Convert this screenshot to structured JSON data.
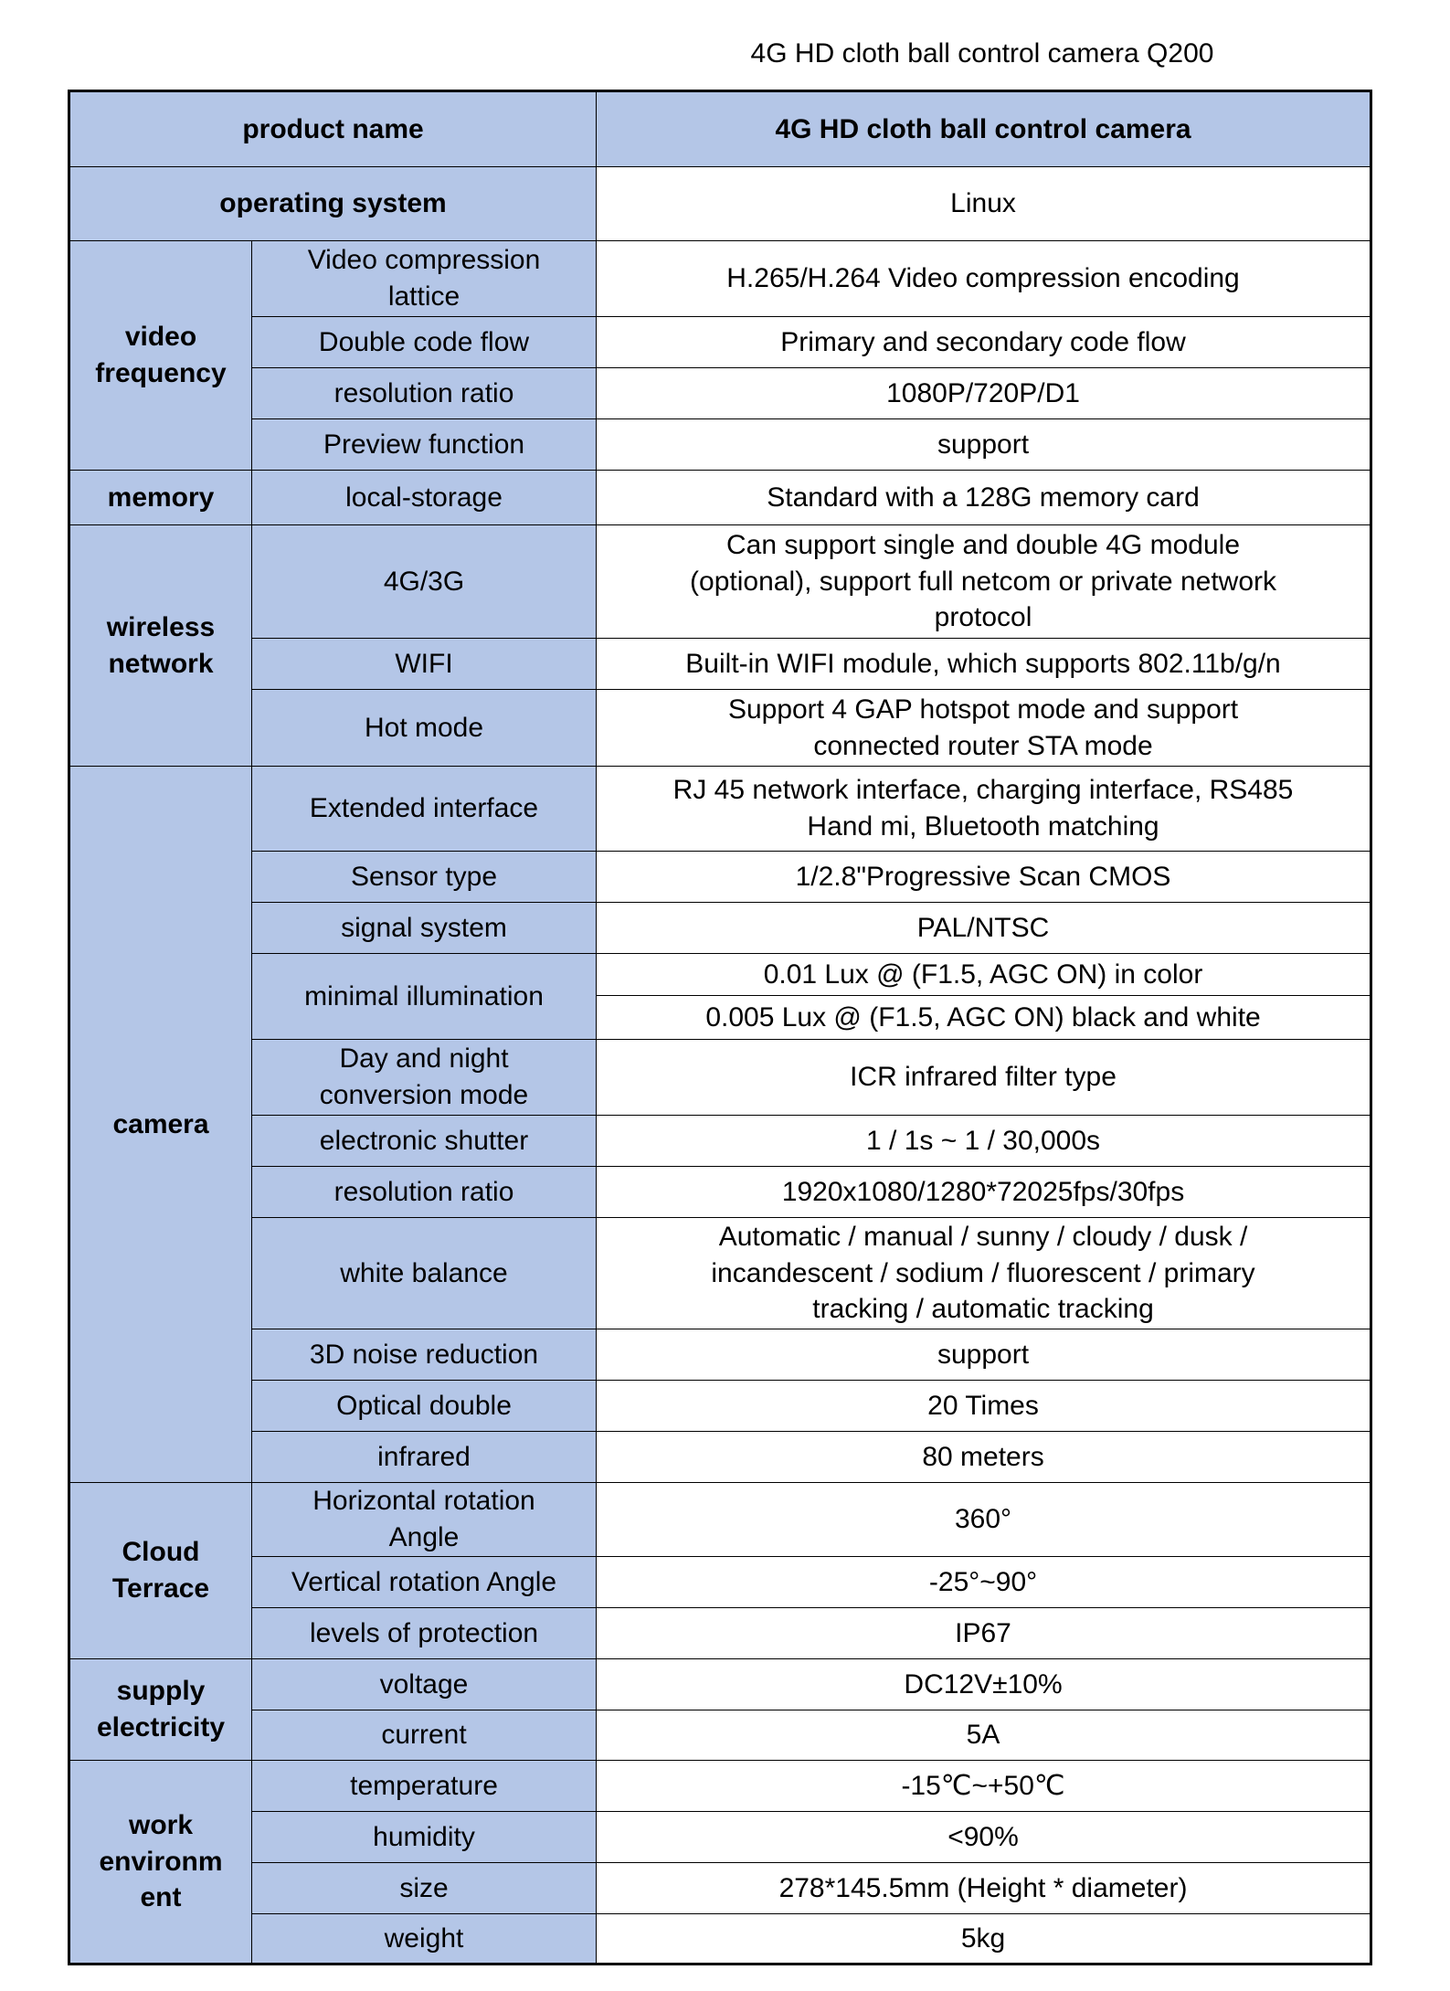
{
  "title": "4G HD cloth ball control camera Q200",
  "header": {
    "label": "product name",
    "value": "4G HD cloth ball control camera"
  },
  "os": {
    "label": "operating system",
    "value": "Linux"
  },
  "groups": {
    "video": {
      "label": "video\nfrequency",
      "rows": [
        {
          "label": "Video compression\nlattice",
          "value": "H.265/H.264 Video compression encoding"
        },
        {
          "label": "Double code flow",
          "value": "Primary and secondary code flow"
        },
        {
          "label": "resolution ratio",
          "value": "1080P/720P/D1"
        },
        {
          "label": "Preview function",
          "value": "support"
        }
      ]
    },
    "memory": {
      "label": "memory",
      "rows": [
        {
          "label": "local-storage",
          "value": "Standard with a 128G memory card"
        }
      ]
    },
    "wireless": {
      "label": "wireless\nnetwork",
      "rows": [
        {
          "label": "4G/3G",
          "value": "Can support single and double 4G module\n(optional), support full netcom or private network\nprotocol"
        },
        {
          "label": "WIFI",
          "value": "Built-in WIFI module, which supports 802.11b/g/n"
        },
        {
          "label": "Hot mode",
          "value": "Support 4 GAP hotspot mode and support\nconnected router STA mode"
        }
      ]
    },
    "camera": {
      "label": "camera",
      "rows": [
        {
          "label": "Extended interface",
          "value": "RJ 45 network interface, charging interface, RS485\nHand mi, Bluetooth matching"
        },
        {
          "label": "Sensor type",
          "value": "1/2.8\"Progressive Scan CMOS"
        },
        {
          "label": "signal system",
          "value": "PAL/NTSC"
        },
        {
          "label": "minimal illumination",
          "values": [
            "0.01 Lux @ (F1.5, AGC ON) in color",
            "0.005 Lux @ (F1.5, AGC ON) black and white"
          ]
        },
        {
          "label": "Day and night\nconversion mode",
          "value": "ICR infrared filter type"
        },
        {
          "label": "electronic shutter",
          "value": "1 / 1s ~ 1 / 30,000s"
        },
        {
          "label": "resolution ratio",
          "value": "1920x1080/1280*72025fps/30fps"
        },
        {
          "label": "white balance",
          "value": "Automatic / manual / sunny / cloudy / dusk /\nincandescent / sodium / fluorescent / primary\ntracking / automatic tracking"
        },
        {
          "label": "3D noise reduction",
          "value": "support"
        },
        {
          "label": "Optical double",
          "value": "20 Times"
        },
        {
          "label": "infrared",
          "value": "80 meters"
        }
      ]
    },
    "cloud": {
      "label": "Cloud\nTerrace",
      "rows": [
        {
          "label": "Horizontal rotation\nAngle",
          "value": "360°"
        },
        {
          "label": "Vertical rotation Angle",
          "value": "-25°~90°"
        },
        {
          "label": "levels of protection",
          "value": "IP67"
        }
      ]
    },
    "supply": {
      "label": "supply\nelectricity",
      "rows": [
        {
          "label": "voltage",
          "value": "DC12V±10%"
        },
        {
          "label": "current",
          "value": "5A"
        }
      ]
    },
    "work": {
      "label": "work\nenvironm\nent",
      "rows": [
        {
          "label": "temperature",
          "value": "-15℃~+50℃"
        },
        {
          "label": "humidity",
          "value": "<90%"
        },
        {
          "label": "size",
          "value": "278*145.5mm (Height * diameter)"
        },
        {
          "label": "weight",
          "value": "5kg"
        }
      ]
    }
  }
}
